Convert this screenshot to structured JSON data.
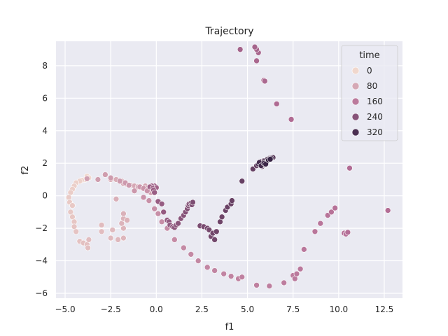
{
  "chart_data": {
    "type": "scatter",
    "title": "Trajectory",
    "xlabel": "f1",
    "ylabel": "f2",
    "xlim": [
      -5.5,
      13.5
    ],
    "ylim": [
      -6.3,
      9.5
    ],
    "x_ticks": [
      -5.0,
      -2.5,
      0.0,
      2.5,
      5.0,
      7.5,
      10.0,
      12.5
    ],
    "x_tick_labels": [
      "−5.0",
      "−2.5",
      "0.0",
      "2.5",
      "5.0",
      "7.5",
      "10.0",
      "12.5"
    ],
    "y_ticks": [
      -6,
      -4,
      -2,
      0,
      2,
      4,
      6,
      8
    ],
    "y_tick_labels": [
      "−6",
      "−4",
      "−2",
      "0",
      "2",
      "4",
      "6",
      "8"
    ],
    "grid": true,
    "background": "#eaeaf2",
    "legend": {
      "title": "time",
      "position": "top-right",
      "entries": [
        {
          "label": "0",
          "value": 0
        },
        {
          "label": "80",
          "value": 80
        },
        {
          "label": "160",
          "value": 160
        },
        {
          "label": "240",
          "value": 240
        },
        {
          "label": "320",
          "value": 320
        }
      ]
    },
    "color_scale": {
      "min": 0,
      "max": 360,
      "low": "#f0d7cd",
      "high": "#2d1e3e"
    },
    "points": [
      {
        "x": -3.8,
        "y": 1.2,
        "t": 2
      },
      {
        "x": -3.7,
        "y": 1.1,
        "t": 4
      },
      {
        "x": -3.9,
        "y": 1.0,
        "t": 6
      },
      {
        "x": -4.1,
        "y": 0.95,
        "t": 8
      },
      {
        "x": -4.2,
        "y": 0.9,
        "t": 10
      },
      {
        "x": -4.4,
        "y": 0.8,
        "t": 12
      },
      {
        "x": -4.5,
        "y": 0.6,
        "t": 14
      },
      {
        "x": -4.6,
        "y": 0.4,
        "t": 16
      },
      {
        "x": -4.7,
        "y": 0.2,
        "t": 18
      },
      {
        "x": -4.8,
        "y": -0.1,
        "t": 20
      },
      {
        "x": -4.75,
        "y": -0.4,
        "t": 22
      },
      {
        "x": -4.6,
        "y": -0.6,
        "t": 24
      },
      {
        "x": -4.7,
        "y": -1.0,
        "t": 26
      },
      {
        "x": -4.6,
        "y": -1.3,
        "t": 28
      },
      {
        "x": -4.5,
        "y": -1.6,
        "t": 30
      },
      {
        "x": -4.5,
        "y": -1.9,
        "t": 32
      },
      {
        "x": -4.4,
        "y": -2.2,
        "t": 34
      },
      {
        "x": -4.2,
        "y": -2.8,
        "t": 36
      },
      {
        "x": -4.0,
        "y": -2.9,
        "t": 38
      },
      {
        "x": -3.8,
        "y": -3.0,
        "t": 40
      },
      {
        "x": -3.75,
        "y": -3.2,
        "t": 42
      },
      {
        "x": -3.7,
        "y": -2.7,
        "t": 44
      },
      {
        "x": -3.0,
        "y": -2.2,
        "t": 46
      },
      {
        "x": -3.0,
        "y": -1.8,
        "t": 48
      },
      {
        "x": -2.4,
        "y": -2.1,
        "t": 50
      },
      {
        "x": -2.5,
        "y": -2.6,
        "t": 52
      },
      {
        "x": -2.1,
        "y": -2.7,
        "t": 54
      },
      {
        "x": -1.8,
        "y": -2.6,
        "t": 56
      },
      {
        "x": -1.8,
        "y": -2.0,
        "t": 58
      },
      {
        "x": -1.9,
        "y": -1.7,
        "t": 60
      },
      {
        "x": -1.8,
        "y": -1.4,
        "t": 62
      },
      {
        "x": -1.6,
        "y": -1.5,
        "t": 64
      },
      {
        "x": -1.8,
        "y": -1.1,
        "t": 66
      },
      {
        "x": -2.2,
        "y": -0.2,
        "t": 68
      },
      {
        "x": -2.5,
        "y": 1.0,
        "t": 70
      },
      {
        "x": -2.2,
        "y": 1.0,
        "t": 72
      },
      {
        "x": -1.9,
        "y": 0.9,
        "t": 74
      },
      {
        "x": -1.8,
        "y": 0.75,
        "t": 76
      },
      {
        "x": -1.6,
        "y": 0.7,
        "t": 78
      },
      {
        "x": -1.4,
        "y": 0.65,
        "t": 80
      },
      {
        "x": -1.2,
        "y": 0.6,
        "t": 82
      },
      {
        "x": -1.0,
        "y": 0.55,
        "t": 84
      },
      {
        "x": -0.8,
        "y": 0.5,
        "t": 86
      },
      {
        "x": -0.6,
        "y": 0.6,
        "t": 88
      },
      {
        "x": -0.5,
        "y": 0.5,
        "t": 90
      },
      {
        "x": -0.4,
        "y": 0.4,
        "t": 92
      },
      {
        "x": -0.3,
        "y": 0.2,
        "t": 94
      },
      {
        "x": -3.8,
        "y": 1.05,
        "t": 96
      },
      {
        "x": -3.2,
        "y": 1.0,
        "t": 98
      },
      {
        "x": -2.8,
        "y": 1.3,
        "t": 100
      },
      {
        "x": -2.5,
        "y": 1.1,
        "t": 102
      },
      {
        "x": -2.0,
        "y": 0.9,
        "t": 104
      },
      {
        "x": -1.7,
        "y": 0.8,
        "t": 106
      },
      {
        "x": -1.5,
        "y": 0.65,
        "t": 108
      },
      {
        "x": -1.2,
        "y": 0.3,
        "t": 110
      },
      {
        "x": -0.9,
        "y": 0.55,
        "t": 112
      },
      {
        "x": -0.7,
        "y": 0.45,
        "t": 114
      },
      {
        "x": -0.5,
        "y": 0.3,
        "t": 116
      },
      {
        "x": -0.7,
        "y": -0.1,
        "t": 118
      },
      {
        "x": -0.4,
        "y": -0.3,
        "t": 120
      },
      {
        "x": -0.1,
        "y": -0.8,
        "t": 122
      },
      {
        "x": 0.1,
        "y": -1.1,
        "t": 124
      },
      {
        "x": 0.3,
        "y": -1.6,
        "t": 126
      },
      {
        "x": 0.6,
        "y": -2.0,
        "t": 128
      },
      {
        "x": 1.0,
        "y": -2.7,
        "t": 130
      },
      {
        "x": 1.5,
        "y": -3.2,
        "t": 132
      },
      {
        "x": 1.9,
        "y": -3.6,
        "t": 134
      },
      {
        "x": 2.3,
        "y": -4.0,
        "t": 136
      },
      {
        "x": 2.8,
        "y": -4.4,
        "t": 138
      },
      {
        "x": 3.2,
        "y": -4.6,
        "t": 140
      },
      {
        "x": 3.7,
        "y": -4.8,
        "t": 142
      },
      {
        "x": 4.1,
        "y": -4.95,
        "t": 144
      },
      {
        "x": 4.5,
        "y": -5.1,
        "t": 146
      },
      {
        "x": 4.7,
        "y": -5.0,
        "t": 148
      },
      {
        "x": 5.5,
        "y": -5.5,
        "t": 150
      },
      {
        "x": 6.2,
        "y": -5.55,
        "t": 152
      },
      {
        "x": 7.0,
        "y": -5.35,
        "t": 154
      },
      {
        "x": 7.5,
        "y": -4.9,
        "t": 156
      },
      {
        "x": 7.6,
        "y": -5.1,
        "t": 158
      },
      {
        "x": 7.7,
        "y": -4.8,
        "t": 160
      },
      {
        "x": 7.9,
        "y": -4.5,
        "t": 162
      },
      {
        "x": 8.1,
        "y": -3.3,
        "t": 164
      },
      {
        "x": 8.7,
        "y": -2.2,
        "t": 166
      },
      {
        "x": 9.0,
        "y": -1.7,
        "t": 168
      },
      {
        "x": 9.4,
        "y": -1.2,
        "t": 170
      },
      {
        "x": 9.6,
        "y": -1.0,
        "t": 172
      },
      {
        "x": 9.8,
        "y": -0.75,
        "t": 174
      },
      {
        "x": 10.3,
        "y": -2.3,
        "t": 176
      },
      {
        "x": 10.4,
        "y": -2.35,
        "t": 178
      },
      {
        "x": 10.5,
        "y": -2.25,
        "t": 180
      },
      {
        "x": 12.7,
        "y": -0.9,
        "t": 182
      },
      {
        "x": 10.6,
        "y": 1.7,
        "t": 184
      },
      {
        "x": 7.4,
        "y": 4.7,
        "t": 186
      },
      {
        "x": 6.6,
        "y": 5.65,
        "t": 188
      },
      {
        "x": 5.9,
        "y": 7.1,
        "t": 190
      },
      {
        "x": 5.95,
        "y": 7.05,
        "t": 192
      },
      {
        "x": 5.5,
        "y": 8.3,
        "t": 194
      },
      {
        "x": 5.6,
        "y": 8.8,
        "t": 196
      },
      {
        "x": 5.5,
        "y": 9.0,
        "t": 198
      },
      {
        "x": 5.4,
        "y": 9.15,
        "t": 200
      },
      {
        "x": 4.6,
        "y": 9.0,
        "t": 202
      },
      {
        "x": -0.1,
        "y": 0.6,
        "t": 204
      },
      {
        "x": 0.0,
        "y": 0.5,
        "t": 206
      },
      {
        "x": -0.25,
        "y": 0.6,
        "t": 208
      },
      {
        "x": -0.35,
        "y": 0.55,
        "t": 210
      },
      {
        "x": -0.2,
        "y": 0.45,
        "t": 212
      },
      {
        "x": -0.15,
        "y": 0.35,
        "t": 214
      },
      {
        "x": -0.1,
        "y": 0.2,
        "t": 216
      },
      {
        "x": 0.1,
        "y": -0.35,
        "t": 218
      },
      {
        "x": 0.3,
        "y": -0.5,
        "t": 220
      },
      {
        "x": 0.4,
        "y": -1.0,
        "t": 222
      },
      {
        "x": 0.6,
        "y": -1.5,
        "t": 224
      },
      {
        "x": 0.7,
        "y": -1.6,
        "t": 226
      },
      {
        "x": 0.75,
        "y": -1.8,
        "t": 228
      },
      {
        "x": 0.9,
        "y": -1.9,
        "t": 230
      },
      {
        "x": 1.0,
        "y": -1.95,
        "t": 232
      },
      {
        "x": 1.1,
        "y": -1.8,
        "t": 234
      },
      {
        "x": 1.2,
        "y": -1.7,
        "t": 236
      },
      {
        "x": 1.35,
        "y": -1.4,
        "t": 238
      },
      {
        "x": 1.5,
        "y": -1.2,
        "t": 240
      },
      {
        "x": 1.6,
        "y": -1.0,
        "t": 242
      },
      {
        "x": 1.7,
        "y": -0.8,
        "t": 244
      },
      {
        "x": 1.75,
        "y": -0.6,
        "t": 246
      },
      {
        "x": 1.8,
        "y": -0.5,
        "t": 248
      },
      {
        "x": 1.9,
        "y": -0.45,
        "t": 250
      },
      {
        "x": 1.95,
        "y": -0.55,
        "t": 252
      },
      {
        "x": 2.0,
        "y": -0.4,
        "t": 254
      },
      {
        "x": 2.4,
        "y": -1.85,
        "t": 256
      },
      {
        "x": 2.6,
        "y": -1.9,
        "t": 258
      },
      {
        "x": 2.8,
        "y": -2.0,
        "t": 260
      },
      {
        "x": 2.9,
        "y": -2.1,
        "t": 262
      },
      {
        "x": 3.0,
        "y": -2.5,
        "t": 264
      },
      {
        "x": 3.2,
        "y": -2.7,
        "t": 266
      },
      {
        "x": 3.1,
        "y": -2.3,
        "t": 268
      },
      {
        "x": 3.3,
        "y": -2.2,
        "t": 270
      },
      {
        "x": 3.5,
        "y": -1.6,
        "t": 272
      },
      {
        "x": 3.6,
        "y": -1.3,
        "t": 274
      },
      {
        "x": 3.8,
        "y": -0.9,
        "t": 276
      },
      {
        "x": 3.9,
        "y": -0.7,
        "t": 278
      },
      {
        "x": 4.1,
        "y": -0.5,
        "t": 280
      },
      {
        "x": 4.15,
        "y": -0.3,
        "t": 282
      },
      {
        "x": 4.7,
        "y": 0.9,
        "t": 284
      },
      {
        "x": 5.3,
        "y": 1.65,
        "t": 286
      },
      {
        "x": 5.5,
        "y": 1.85,
        "t": 288
      },
      {
        "x": 5.7,
        "y": 1.95,
        "t": 290
      },
      {
        "x": 5.75,
        "y": 2.1,
        "t": 292
      },
      {
        "x": 5.8,
        "y": 1.8,
        "t": 294
      },
      {
        "x": 5.85,
        "y": 2.0,
        "t": 296
      },
      {
        "x": 5.9,
        "y": 2.15,
        "t": 298
      },
      {
        "x": 6.0,
        "y": 2.0,
        "t": 300
      },
      {
        "x": 6.05,
        "y": 2.1,
        "t": 302
      },
      {
        "x": 6.1,
        "y": 2.2,
        "t": 304
      },
      {
        "x": 6.2,
        "y": 2.3,
        "t": 306
      },
      {
        "x": 6.4,
        "y": 2.35,
        "t": 308
      },
      {
        "x": 5.95,
        "y": 1.95,
        "t": 310
      },
      {
        "x": 6.0,
        "y": 2.05,
        "t": 312
      },
      {
        "x": 5.85,
        "y": 1.9,
        "t": 314
      },
      {
        "x": 5.9,
        "y": 2.1,
        "t": 316
      },
      {
        "x": 6.1,
        "y": 2.25,
        "t": 318
      },
      {
        "x": 6.3,
        "y": 2.3,
        "t": 320
      },
      {
        "x": 5.6,
        "y": 1.95,
        "t": 324
      },
      {
        "x": 5.65,
        "y": 2.05,
        "t": 328
      },
      {
        "x": 5.75,
        "y": 1.85,
        "t": 332
      },
      {
        "x": 5.9,
        "y": 2.0,
        "t": 336
      },
      {
        "x": 6.0,
        "y": 1.95,
        "t": 340
      },
      {
        "x": 6.15,
        "y": 2.2,
        "t": 344
      },
      {
        "x": 6.25,
        "y": 2.25,
        "t": 348
      }
    ]
  }
}
